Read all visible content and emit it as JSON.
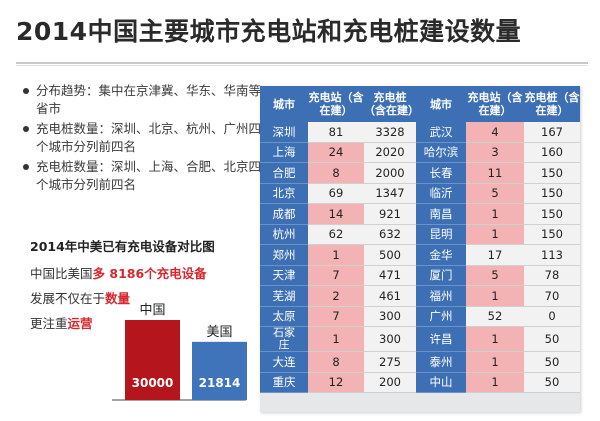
{
  "title": "2014中国主要城市充电站和充电桩建设数量",
  "bullets": [
    "分布趋势：集中在京津冀、华东、华南等省市",
    "充电桩数量：深圳、北京、杭州、广州四个城市分列前四名",
    "充电桩数量：深圳、上海、合肥、北京四个城市分列前四名"
  ],
  "comparison": {
    "title": "2014年中美已有充电设备对比图",
    "line1_prefix": "中国比美国",
    "line1_highlight": "多 8186个充电设备",
    "line2_prefix": "发展不仅在于",
    "line2_highlight": "数量",
    "line3_prefix": "更注重",
    "line3_highlight": "运营"
  },
  "chart_data": {
    "type": "bar",
    "categories": [
      "中国",
      "美国"
    ],
    "values": [
      30000,
      21814
    ],
    "colors": [
      "#b5151c",
      "#3f73ba"
    ]
  },
  "table": {
    "headers": [
      "城市",
      "充电站（含在建）",
      "充电桩（含在建）",
      "城市",
      "充电站（含在建）",
      "充电桩（含在建）"
    ],
    "highlight_color": "#f3b2b4",
    "rows": [
      {
        "c1": "深圳",
        "s1": "81",
        "p1": "3328",
        "c2": "武汉",
        "s2": "4",
        "p2": "167",
        "h1": false,
        "h2": true
      },
      {
        "c1": "上海",
        "s1": "24",
        "p1": "2020",
        "c2": "哈尔滨",
        "s2": "3",
        "p2": "160",
        "h1": true,
        "h2": true
      },
      {
        "c1": "合肥",
        "s1": "8",
        "p1": "2000",
        "c2": "长春",
        "s2": "11",
        "p2": "150",
        "h1": true,
        "h2": true
      },
      {
        "c1": "北京",
        "s1": "69",
        "p1": "1347",
        "c2": "临沂",
        "s2": "5",
        "p2": "150",
        "h1": false,
        "h2": true
      },
      {
        "c1": "成都",
        "s1": "14",
        "p1": "921",
        "c2": "南昌",
        "s2": "1",
        "p2": "150",
        "h1": true,
        "h2": true
      },
      {
        "c1": "杭州",
        "s1": "62",
        "p1": "632",
        "c2": "昆明",
        "s2": "1",
        "p2": "150",
        "h1": false,
        "h2": true
      },
      {
        "c1": "郑州",
        "s1": "1",
        "p1": "500",
        "c2": "金华",
        "s2": "17",
        "p2": "113",
        "h1": true,
        "h2": false
      },
      {
        "c1": "天津",
        "s1": "7",
        "p1": "471",
        "c2": "厦门",
        "s2": "5",
        "p2": "78",
        "h1": true,
        "h2": true
      },
      {
        "c1": "芜湖",
        "s1": "2",
        "p1": "461",
        "c2": "福州",
        "s2": "1",
        "p2": "70",
        "h1": true,
        "h2": true
      },
      {
        "c1": "太原",
        "s1": "7",
        "p1": "300",
        "c2": "广州",
        "s2": "52",
        "p2": "0",
        "h1": true,
        "h2": false
      },
      {
        "c1": "石家庄",
        "s1": "1",
        "p1": "300",
        "c2": "许昌",
        "s2": "1",
        "p2": "50",
        "h1": true,
        "h2": true
      },
      {
        "c1": "大连",
        "s1": "8",
        "p1": "275",
        "c2": "泰州",
        "s2": "1",
        "p2": "50",
        "h1": true,
        "h2": true
      },
      {
        "c1": "重庆",
        "s1": "12",
        "p1": "200",
        "c2": "中山",
        "s2": "1",
        "p2": "50",
        "h1": true,
        "h2": true
      }
    ]
  }
}
